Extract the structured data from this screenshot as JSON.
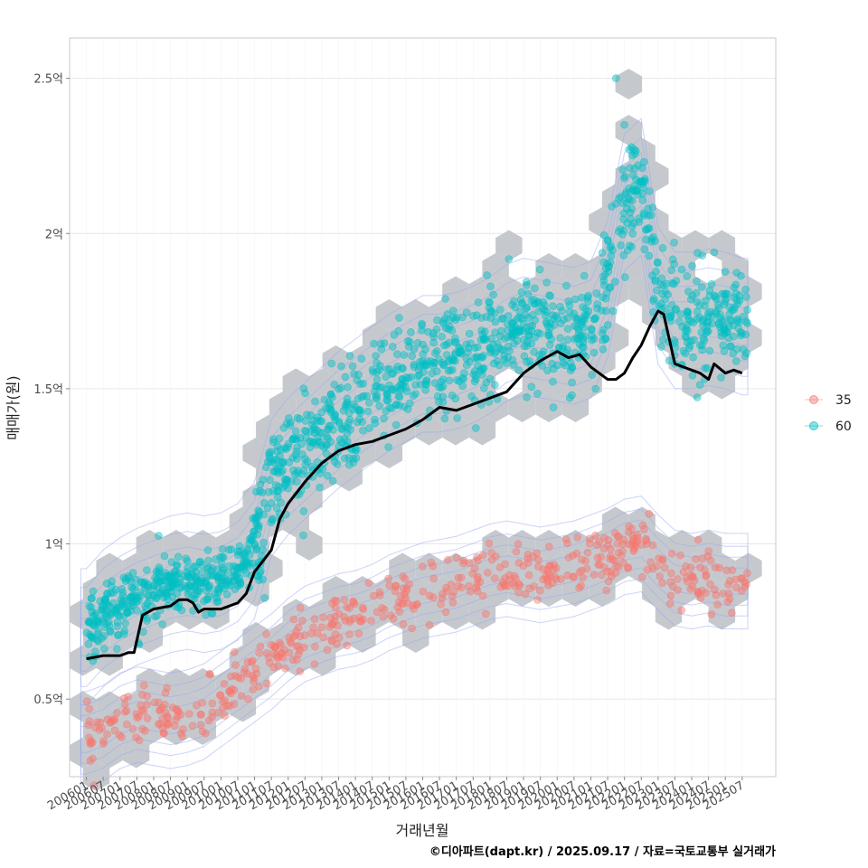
{
  "chart_data": {
    "type": "scatter",
    "xlabel": "거래년월",
    "ylabel": "매매가(원)",
    "caption": "©디아파트(dapt.kr) / 2025.09.17 / 자료=국토교통부 실거래가",
    "x_ticks": [
      "200601",
      "200607",
      "200701",
      "200707",
      "200801",
      "200807",
      "200901",
      "200907",
      "201001",
      "201007",
      "201101",
      "201107",
      "201201",
      "201207",
      "201301",
      "201307",
      "201401",
      "201407",
      "201501",
      "201507",
      "201601",
      "201607",
      "201701",
      "201707",
      "201801",
      "201807",
      "201901",
      "201907",
      "202001",
      "202007",
      "202101",
      "202107",
      "202201",
      "202207",
      "202301",
      "202307",
      "202401",
      "202407",
      "202501",
      "202507"
    ],
    "y_ticks": [
      {
        "value": 0.5,
        "label": "0.5억"
      },
      {
        "value": 1.0,
        "label": "1억"
      },
      {
        "value": 1.5,
        "label": "1.5억"
      },
      {
        "value": 2.0,
        "label": "2억"
      },
      {
        "value": 2.5,
        "label": "2.5억"
      }
    ],
    "x_range": [
      "2005-07",
      "2026-07"
    ],
    "ylim": [
      0.25,
      2.63
    ],
    "grid": true,
    "legend_position": "right",
    "legend": [
      {
        "name": "35",
        "color": "#F8766D"
      },
      {
        "name": "60",
        "color": "#00BFC4"
      }
    ],
    "series": [
      {
        "name": "35",
        "color": "#F8766D",
        "trend": [
          [
            "2006-01",
            0.37
          ],
          [
            "2006-07",
            0.39
          ],
          [
            "2007-01",
            0.43
          ],
          [
            "2007-07",
            0.45
          ],
          [
            "2008-01",
            0.44
          ],
          [
            "2008-07",
            0.43
          ],
          [
            "2009-01",
            0.44
          ],
          [
            "2009-07",
            0.46
          ],
          [
            "2010-01",
            0.5
          ],
          [
            "2010-07",
            0.54
          ],
          [
            "2011-01",
            0.58
          ],
          [
            "2011-07",
            0.62
          ],
          [
            "2012-01",
            0.67
          ],
          [
            "2012-07",
            0.71
          ],
          [
            "2013-01",
            0.73
          ],
          [
            "2013-07",
            0.75
          ],
          [
            "2014-01",
            0.76
          ],
          [
            "2014-07",
            0.78
          ],
          [
            "2015-01",
            0.81
          ],
          [
            "2015-07",
            0.83
          ],
          [
            "2016-01",
            0.85
          ],
          [
            "2016-07",
            0.86
          ],
          [
            "2017-01",
            0.87
          ],
          [
            "2017-07",
            0.89
          ],
          [
            "2018-01",
            0.91
          ],
          [
            "2018-07",
            0.92
          ],
          [
            "2019-01",
            0.91
          ],
          [
            "2019-07",
            0.9
          ],
          [
            "2020-01",
            0.91
          ],
          [
            "2020-07",
            0.92
          ],
          [
            "2021-01",
            0.94
          ],
          [
            "2021-07",
            0.96
          ],
          [
            "2022-01",
            0.99
          ],
          [
            "2022-07",
            1.0
          ],
          [
            "2023-01",
            0.94
          ],
          [
            "2023-07",
            0.89
          ],
          [
            "2024-01",
            0.88
          ],
          [
            "2024-07",
            0.89
          ],
          [
            "2025-01",
            0.88
          ],
          [
            "2025-07",
            0.88
          ]
        ]
      },
      {
        "name": "60",
        "color": "#00BFC4",
        "trend": [
          [
            "2006-01",
            0.7
          ],
          [
            "2006-07",
            0.76
          ],
          [
            "2007-01",
            0.8
          ],
          [
            "2007-07",
            0.83
          ],
          [
            "2008-01",
            0.85
          ],
          [
            "2008-07",
            0.87
          ],
          [
            "2009-01",
            0.88
          ],
          [
            "2009-07",
            0.87
          ],
          [
            "2010-01",
            0.88
          ],
          [
            "2010-07",
            0.91
          ],
          [
            "2011-01",
            0.98
          ],
          [
            "2011-07",
            1.18
          ],
          [
            "2012-01",
            1.25
          ],
          [
            "2012-07",
            1.3
          ],
          [
            "2013-01",
            1.35
          ],
          [
            "2013-07",
            1.4
          ],
          [
            "2014-01",
            1.44
          ],
          [
            "2014-07",
            1.48
          ],
          [
            "2015-01",
            1.52
          ],
          [
            "2015-07",
            1.55
          ],
          [
            "2016-01",
            1.58
          ],
          [
            "2016-07",
            1.58
          ],
          [
            "2017-01",
            1.59
          ],
          [
            "2017-07",
            1.61
          ],
          [
            "2018-01",
            1.64
          ],
          [
            "2018-07",
            1.68
          ],
          [
            "2019-01",
            1.7
          ],
          [
            "2019-07",
            1.69
          ],
          [
            "2020-01",
            1.68
          ],
          [
            "2020-07",
            1.67
          ],
          [
            "2021-01",
            1.69
          ],
          [
            "2021-07",
            1.82
          ],
          [
            "2022-01",
            2.1
          ],
          [
            "2022-07",
            2.15
          ],
          [
            "2023-01",
            1.8
          ],
          [
            "2023-07",
            1.72
          ],
          [
            "2024-01",
            1.72
          ],
          [
            "2024-07",
            1.73
          ],
          [
            "2025-01",
            1.72
          ],
          [
            "2025-07",
            1.7
          ]
        ],
        "outliers": [
          [
            "2021-10",
            2.5
          ],
          [
            "2022-01",
            2.35
          ]
        ]
      }
    ],
    "median_line": [
      [
        "2006-01",
        0.63
      ],
      [
        "2006-07",
        0.64
      ],
      [
        "2007-01",
        0.64
      ],
      [
        "2007-04",
        0.65
      ],
      [
        "2007-06",
        0.65
      ],
      [
        "2007-09",
        0.77
      ],
      [
        "2008-01",
        0.79
      ],
      [
        "2008-07",
        0.8
      ],
      [
        "2008-10",
        0.82
      ],
      [
        "2009-01",
        0.82
      ],
      [
        "2009-03",
        0.81
      ],
      [
        "2009-05",
        0.78
      ],
      [
        "2009-07",
        0.79
      ],
      [
        "2010-01",
        0.79
      ],
      [
        "2010-07",
        0.81
      ],
      [
        "2010-10",
        0.84
      ],
      [
        "2011-01",
        0.91
      ],
      [
        "2011-07",
        0.98
      ],
      [
        "2011-10",
        1.08
      ],
      [
        "2012-01",
        1.13
      ],
      [
        "2012-07",
        1.2
      ],
      [
        "2013-01",
        1.26
      ],
      [
        "2013-07",
        1.3
      ],
      [
        "2014-01",
        1.32
      ],
      [
        "2014-07",
        1.33
      ],
      [
        "2015-01",
        1.35
      ],
      [
        "2015-07",
        1.37
      ],
      [
        "2016-01",
        1.4
      ],
      [
        "2016-07",
        1.44
      ],
      [
        "2017-01",
        1.43
      ],
      [
        "2017-07",
        1.45
      ],
      [
        "2018-01",
        1.47
      ],
      [
        "2018-07",
        1.49
      ],
      [
        "2019-01",
        1.55
      ],
      [
        "2019-07",
        1.59
      ],
      [
        "2020-01",
        1.62
      ],
      [
        "2020-05",
        1.6
      ],
      [
        "2020-09",
        1.61
      ],
      [
        "2021-01",
        1.57
      ],
      [
        "2021-07",
        1.53
      ],
      [
        "2021-10",
        1.53
      ],
      [
        "2022-01",
        1.55
      ],
      [
        "2022-04",
        1.6
      ],
      [
        "2022-07",
        1.64
      ],
      [
        "2022-10",
        1.7
      ],
      [
        "2023-01",
        1.75
      ],
      [
        "2023-03",
        1.74
      ],
      [
        "2023-07",
        1.58
      ],
      [
        "2023-10",
        1.57
      ],
      [
        "2024-01",
        1.56
      ],
      [
        "2024-04",
        1.55
      ],
      [
        "2024-07",
        1.53
      ],
      [
        "2024-09",
        1.58
      ],
      [
        "2025-01",
        1.55
      ],
      [
        "2025-04",
        1.56
      ],
      [
        "2025-07",
        1.55
      ]
    ]
  }
}
